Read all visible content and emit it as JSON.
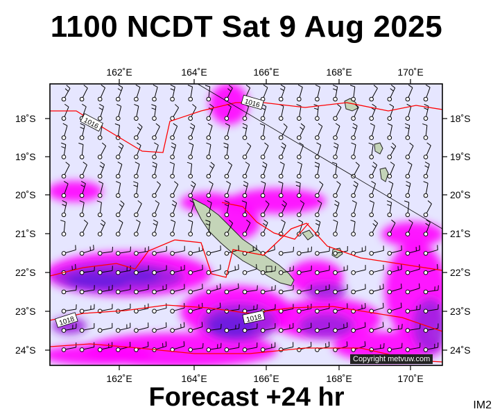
{
  "title": "1100 NCDT Sat 9 Aug 2025",
  "footer": "Forecast +24 hr",
  "image_code": "IM2",
  "copyright": "Copyright metvuw.com",
  "longitude_labels": [
    "162˚E",
    "164˚E",
    "166˚E",
    "168˚E",
    "170˚E"
  ],
  "latitude_labels": [
    "18˚S",
    "19˚S",
    "20˚S",
    "21˚S",
    "22˚S",
    "23˚S",
    "24˚S"
  ],
  "isobar_labels": [
    "1016",
    "1016",
    "1018",
    "1018"
  ],
  "colors": {
    "background": "#e6e6ff",
    "rain_light": "#ff00ff",
    "rain_medium": "#a020e0",
    "rain_heavy": "#6a20e0",
    "isobar": "#ff0000",
    "land": "#c4d4b8"
  }
}
